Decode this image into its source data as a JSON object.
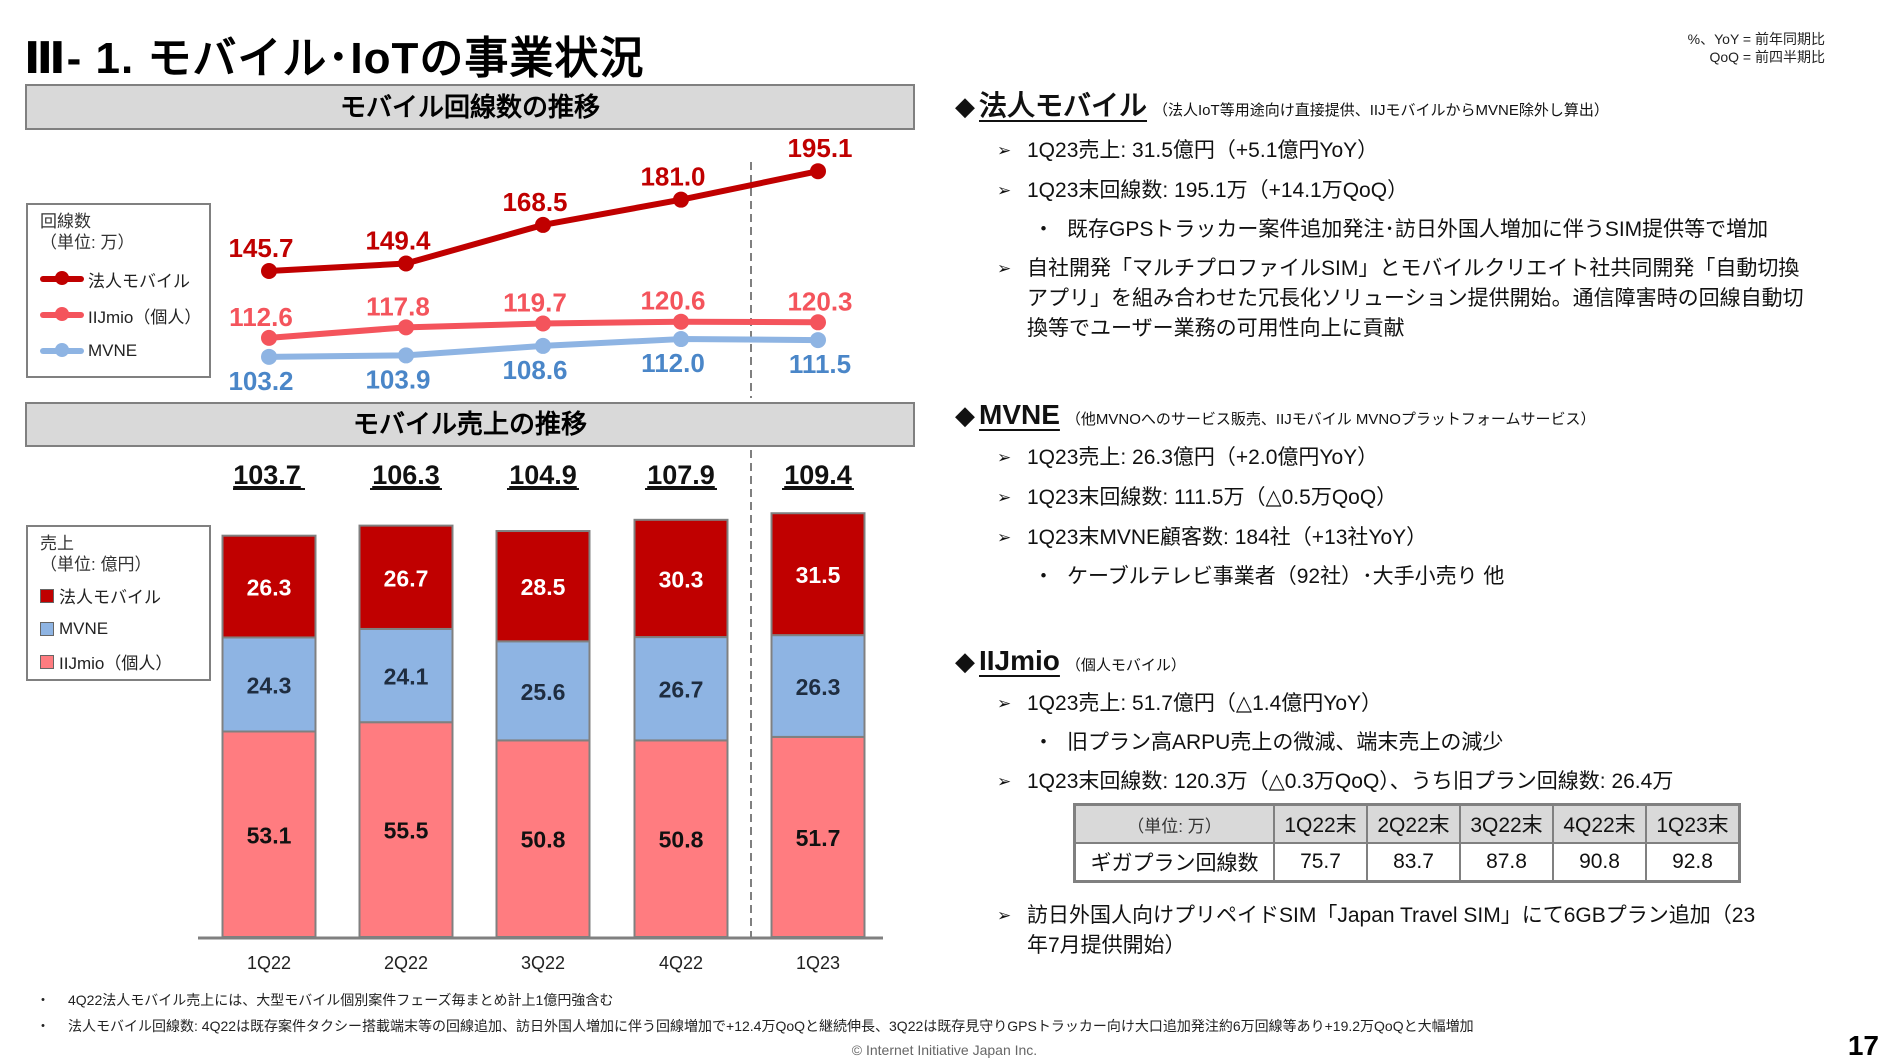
{
  "page": {
    "title": "Ⅲ- 1.  モバイル･IoTの事業状況",
    "note_line1": "%、YoY = 前年同期比",
    "note_line2": "QoQ = 前四半期比",
    "page_number": "17",
    "copyright": "© Internet Initiative Japan Inc."
  },
  "line_section": {
    "header": "モバイル回線数の推移"
  },
  "bar_section": {
    "header": "モバイル売上の推移"
  },
  "line_legend": {
    "title": "回線数",
    "unit": "（単位: 万）",
    "items": [
      "法人モバイル",
      "IIJmio（個人）",
      "MVNE"
    ]
  },
  "bar_legend": {
    "title": "売上",
    "unit": "（単位: 億円）",
    "items": [
      "法人モバイル",
      "MVNE",
      "IIJmio（個人）"
    ]
  },
  "colors": {
    "corporate": "#c00000",
    "iijmio_line": "#f4545c",
    "mvne_line": "#8eb4e3",
    "mvne_label": "#4a86c8",
    "iijmio_bar": "#ff7c80",
    "mvne_bar": "#8eb4e3",
    "corporate_bar": "#c00000"
  },
  "chart_data": [
    {
      "type": "line",
      "title": "モバイル回線数の推移",
      "unit": "万",
      "categories": [
        "1Q22",
        "2Q22",
        "3Q22",
        "4Q22",
        "1Q23"
      ],
      "series": [
        {
          "name": "法人モバイル",
          "values": [
            145.7,
            149.4,
            168.5,
            181.0,
            195.1
          ]
        },
        {
          "name": "IIJmio（個人）",
          "values": [
            112.6,
            117.8,
            119.7,
            120.6,
            120.3
          ]
        },
        {
          "name": "MVNE",
          "values": [
            103.2,
            103.9,
            108.6,
            112.0,
            111.5
          ]
        }
      ],
      "legend": "left",
      "grid": false
    },
    {
      "type": "bar",
      "stacked": true,
      "title": "モバイル売上の推移",
      "unit": "億円",
      "categories": [
        "1Q22",
        "2Q22",
        "3Q22",
        "4Q22",
        "1Q23"
      ],
      "series": [
        {
          "name": "IIJmio（個人）",
          "values": [
            53.1,
            55.5,
            50.8,
            50.8,
            51.7
          ]
        },
        {
          "name": "MVNE",
          "values": [
            24.3,
            24.1,
            25.6,
            26.7,
            26.3
          ]
        },
        {
          "name": "法人モバイル",
          "values": [
            26.3,
            26.7,
            28.5,
            30.3,
            31.5
          ]
        }
      ],
      "totals": [
        "103.7",
        "106.3",
        "104.9",
        "107.9",
        "109.4"
      ],
      "legend": "left",
      "grid": false
    }
  ],
  "right": {
    "corporate": {
      "heading": "法人モバイル",
      "sub": "（法人IoT等用途向け直接提供、IIJモバイルからMVNE除外し算出）",
      "b1": "1Q23売上: 31.5億円（+5.1億円YoY）",
      "b2": "1Q23末回線数: 195.1万（+14.1万QoQ）",
      "b2_sub": "既存GPSトラッカー案件追加発注･訪日外国人増加に伴うSIM提供等で増加",
      "b3": "自社開発「マルチプロファイルSIM」とモバイルクリエイト社共同開発「自動切換アプリ」を組み合わせた冗長化ソリューション提供開始。通信障害時の回線自動切換等でユーザー業務の可用性向上に貢献"
    },
    "mvne": {
      "heading": "MVNE",
      "sub": "（他MVNOへのサービス販売、IIJモバイル MVNOプラットフォームサービス）",
      "b1": "1Q23売上: 26.3億円（+2.0億円YoY）",
      "b2": "1Q23末回線数: 111.5万（△0.5万QoQ）",
      "b3": "1Q23末MVNE顧客数: 184社（+13社YoY）",
      "b3_sub": "ケーブルテレビ事業者（92社）･大手小売り 他"
    },
    "iijmio": {
      "heading": "IIJmio",
      "sub": "（個人モバイル）",
      "b1": "1Q23売上: 51.7億円（△1.4億円YoY）",
      "b1_sub": "旧プラン高ARPU売上の微減、端末売上の減少",
      "b2": "1Q23末回線数: 120.3万（△0.3万QoQ）、うち旧プラン回線数: 26.4万",
      "table": {
        "unit": "（単位: 万）",
        "headers": [
          "1Q22末",
          "2Q22末",
          "3Q22末",
          "4Q22末",
          "1Q23末"
        ],
        "row_label": "ギガプラン回線数",
        "values": [
          "75.7",
          "83.7",
          "87.8",
          "90.8",
          "92.8"
        ]
      },
      "b3": "訪日外国人向けプリペイドSIM「Japan Travel SIM」にて6GBプラン追加（23年7月提供開始）"
    }
  },
  "footnotes": [
    "4Q22法人モバイル売上には、大型モバイル個別案件フェーズ毎まとめ計上1億円強含む",
    "法人モバイル回線数: 4Q22は既存案件タクシー搭載端末等の回線追加、訪日外国人増加に伴う回線増加で+12.4万QoQと継続伸長、3Q22は既存見守りGPSトラッカー向け大口追加発注約6万回線等あり+19.2万QoQと大幅増加"
  ]
}
